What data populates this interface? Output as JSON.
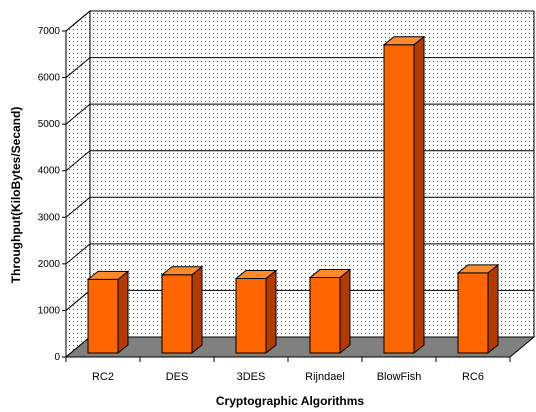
{
  "chart_data": {
    "type": "bar",
    "title": "",
    "xlabel": "Cryptographic Algorithms",
    "ylabel": "Throughput(KiloBytes/Secand)",
    "categories": [
      "RC2",
      "DES",
      "3DES",
      "Rijndael",
      "BlowFish",
      "RC6"
    ],
    "values": [
      1580,
      1680,
      1600,
      1620,
      6620,
      1720
    ],
    "yticks": [
      "0",
      "1000",
      "2000",
      "3000",
      "4000",
      "5000",
      "6000",
      "7000"
    ],
    "ylim": [
      0,
      7000
    ],
    "grid": true,
    "legend": "none",
    "style": "3d-column",
    "colors": {
      "bar_front": "#ff6600",
      "bar_top": "#ff8a2b",
      "bar_side": "#b23c00",
      "floor": "#808080",
      "wall_background": "#ffffff",
      "wall_dots": "#555555",
      "gridline": "#000000"
    }
  }
}
